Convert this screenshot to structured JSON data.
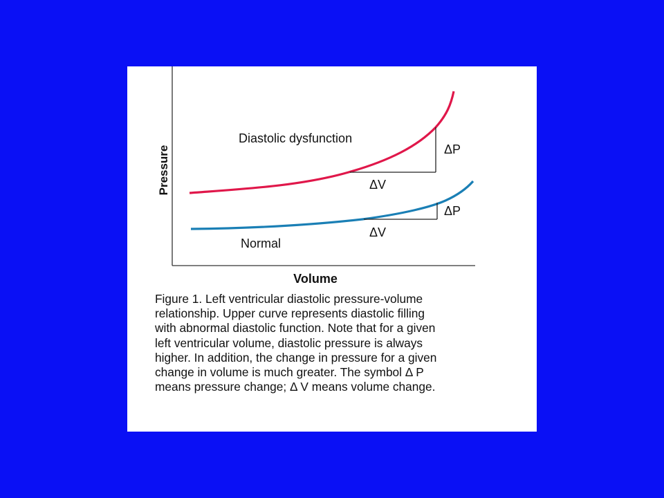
{
  "colors": {
    "background": "#0a10f5",
    "panel": "#ffffff",
    "diastolic_dysfunction_curve": "#e0174a",
    "normal_curve": "#1a7fb5",
    "axes": "#333333"
  },
  "figure": {
    "ylabel": "Pressure",
    "xlabel": "Volume",
    "curves": {
      "upper_label": "Diastolic dysfunction",
      "lower_label": "Normal"
    },
    "markers": {
      "upper_delta_p": "ΔP",
      "upper_delta_v": "ΔV",
      "lower_delta_p": "ΔP",
      "lower_delta_v": "ΔV"
    }
  },
  "caption": {
    "lines": [
      "Figure 1. Left ventricular diastolic pressure-volume",
      "relationship. Upper curve represents diastolic filling",
      "with abnormal diastolic function. Note that for a given",
      "left ventricular volume, diastolic pressure is always",
      "higher. In addition, the change in pressure for a given",
      "change in volume is much greater. The symbol Δ P",
      "means pressure change; Δ V means volume change."
    ]
  }
}
